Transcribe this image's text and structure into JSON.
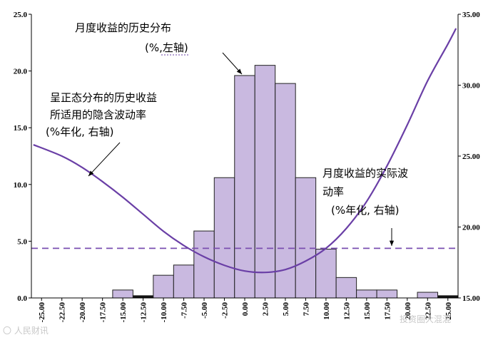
{
  "chart_data": {
    "type": "bar",
    "categories": [
      "-25.00",
      "-22.50",
      "-20.00",
      "-17.50",
      "-15.00",
      "-12.50",
      "-10.00",
      "-7.50",
      "-5.00",
      "-2.50",
      "0.00",
      "2.50",
      "5.00",
      "7.50",
      "10.00",
      "12.50",
      "15.00",
      "17.50",
      "20.00",
      "22.50",
      "25.00"
    ],
    "values": [
      0,
      0,
      0,
      0,
      0.7,
      0.2,
      2.0,
      2.9,
      5.9,
      10.6,
      19.6,
      20.5,
      18.9,
      10.6,
      4.3,
      1.8,
      0.7,
      0.7,
      0,
      0.5,
      0.2
    ],
    "ylim": [
      0,
      25
    ],
    "y_ticks": [
      "0.0",
      "5.0",
      "10.0",
      "15.0",
      "20.0",
      "25.0"
    ],
    "y2lim": [
      15,
      35
    ],
    "y2_ticks": [
      "15.00",
      "20.00",
      "25.00",
      "30.00",
      "35.00"
    ],
    "implied_vol_curve": {
      "x": [
        -26,
        -22.5,
        -20,
        -17.5,
        -15,
        -12.5,
        -10,
        -7.5,
        -5,
        -2.5,
        0,
        2.5,
        5,
        7.5,
        10,
        12.5,
        15,
        17.5,
        20,
        22.5,
        25,
        26
      ],
      "y": [
        25.8,
        25.0,
        24.2,
        23.2,
        22.1,
        20.9,
        19.7,
        18.7,
        17.9,
        17.3,
        16.9,
        16.8,
        17.0,
        17.6,
        18.5,
        19.9,
        21.8,
        24.3,
        27.2,
        30.3,
        32.9,
        34.0
      ]
    },
    "actual_vol_line": {
      "y": 18.5
    },
    "annotations": [
      {
        "lines": [
          "月度收益的历史分布",
          "(%,左轴)"
        ]
      },
      {
        "lines": [
          "呈正态分布的历史收益",
          "所适用的隐含波动率",
          "(%年化, 右轴)"
        ]
      },
      {
        "lines": [
          "月度收益的实际波",
          "动率",
          "(%年化, 右轴)"
        ]
      }
    ],
    "colors": {
      "bar_fill": "#c9b9e0",
      "bar_stroke": "#222222",
      "curve": "#6a3fa6",
      "dash": "#7a4fb0"
    },
    "grid": false
  },
  "watermarks": [
    "〇 人民财讯",
    "投资圈大混混"
  ]
}
